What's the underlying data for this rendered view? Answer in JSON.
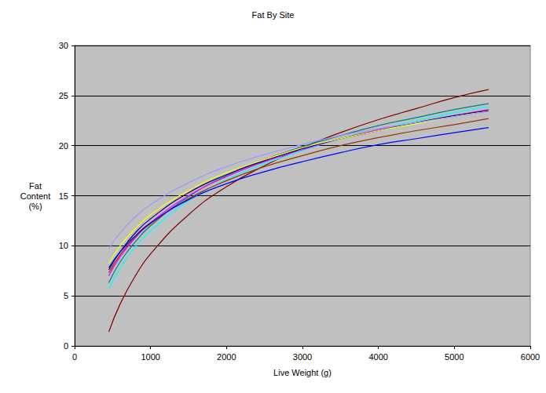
{
  "chart_data": {
    "type": "line",
    "title": "Fat By Site",
    "xlabel": "Live Weight (g)",
    "ylabel": "Fat Content (%)",
    "x": [
      450,
      600,
      800,
      1000,
      1500,
      2000,
      2500,
      3000,
      3500,
      4000,
      4500,
      5000,
      5450
    ],
    "series": [
      {
        "color": "#800000",
        "values": [
          1.4,
          4.2,
          7.0,
          9.2,
          13.1,
          15.9,
          18.0,
          19.8,
          21.3,
          22.6,
          23.7,
          24.8,
          25.6
        ]
      },
      {
        "color": "#008080",
        "values": [
          6.3,
          8.4,
          10.4,
          12.0,
          14.9,
          17.0,
          18.6,
          19.9,
          21.0,
          22.0,
          22.8,
          23.6,
          24.2
        ]
      },
      {
        "color": "#00FFFF",
        "values": [
          5.7,
          7.8,
          9.9,
          11.5,
          14.5,
          16.6,
          18.2,
          19.5,
          20.7,
          21.6,
          22.5,
          23.3,
          23.9
        ]
      },
      {
        "color": "#FF00FF",
        "values": [
          7.0,
          8.9,
          10.8,
          12.3,
          15.0,
          16.9,
          18.4,
          19.6,
          20.7,
          21.6,
          22.3,
          23.0,
          23.6
        ]
      },
      {
        "color": "#000080",
        "values": [
          7.6,
          9.4,
          11.3,
          12.7,
          15.3,
          17.1,
          18.5,
          19.7,
          20.7,
          21.5,
          22.3,
          23.0,
          23.5
        ]
      },
      {
        "color": "#FFFF00",
        "values": [
          8.2,
          10.0,
          11.7,
          13.1,
          15.5,
          17.3,
          18.6,
          19.8,
          20.7,
          21.5,
          22.2,
          22.9,
          23.4
        ]
      },
      {
        "color": "#993300",
        "values": [
          7.3,
          9.1,
          10.9,
          12.2,
          14.7,
          16.5,
          17.9,
          19.0,
          20.0,
          20.8,
          21.5,
          22.1,
          22.7
        ]
      },
      {
        "color": "#0000FF",
        "values": [
          7.8,
          9.4,
          11.0,
          12.3,
          14.6,
          16.2,
          17.4,
          18.4,
          19.3,
          20.1,
          20.7,
          21.3,
          21.8
        ]
      },
      {
        "color": "#9999FF",
        "values": [
          9.7,
          11.3,
          12.9,
          14.1,
          16.3,
          17.9,
          19.1,
          20.1,
          21.0,
          21.7,
          22.3,
          22.9,
          23.4
        ]
      }
    ],
    "xlim": [
      0,
      6000
    ],
    "xticks": [
      0,
      1000,
      2000,
      3000,
      4000,
      5000,
      6000
    ],
    "ylim": [
      0,
      30
    ],
    "yticks": [
      0,
      5,
      10,
      15,
      20,
      25,
      30
    ],
    "grid": true
  }
}
